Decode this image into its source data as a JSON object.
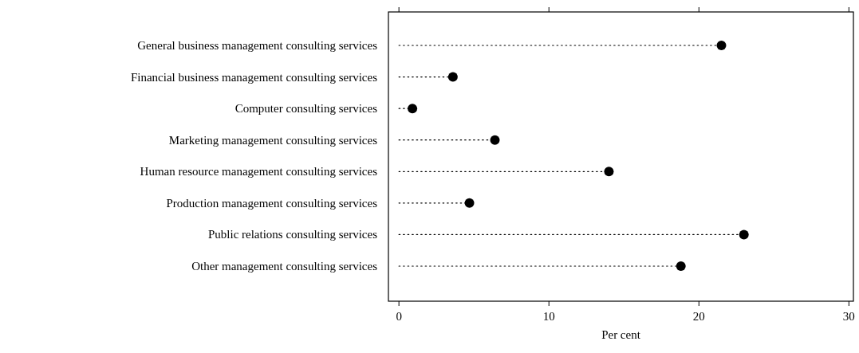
{
  "chart_data": {
    "type": "lollipop",
    "orientation": "horizontal",
    "categories": [
      "General business management consulting services",
      "Financial business management consulting services",
      "Computer consulting services",
      "Marketing management consulting services",
      "Human resource management consulting services",
      "Production management consulting services",
      "Public relations consulting services",
      "Other management consulting services"
    ],
    "values": [
      21.5,
      3.6,
      0.9,
      6.4,
      14.0,
      4.7,
      23.0,
      18.8
    ],
    "color": "#000000",
    "xlabel": "Per cent",
    "xlim": [
      -0.7,
      30.3
    ],
    "xticks": [
      0,
      10,
      20,
      30
    ],
    "marker": "circle",
    "line_style": "dotted"
  }
}
